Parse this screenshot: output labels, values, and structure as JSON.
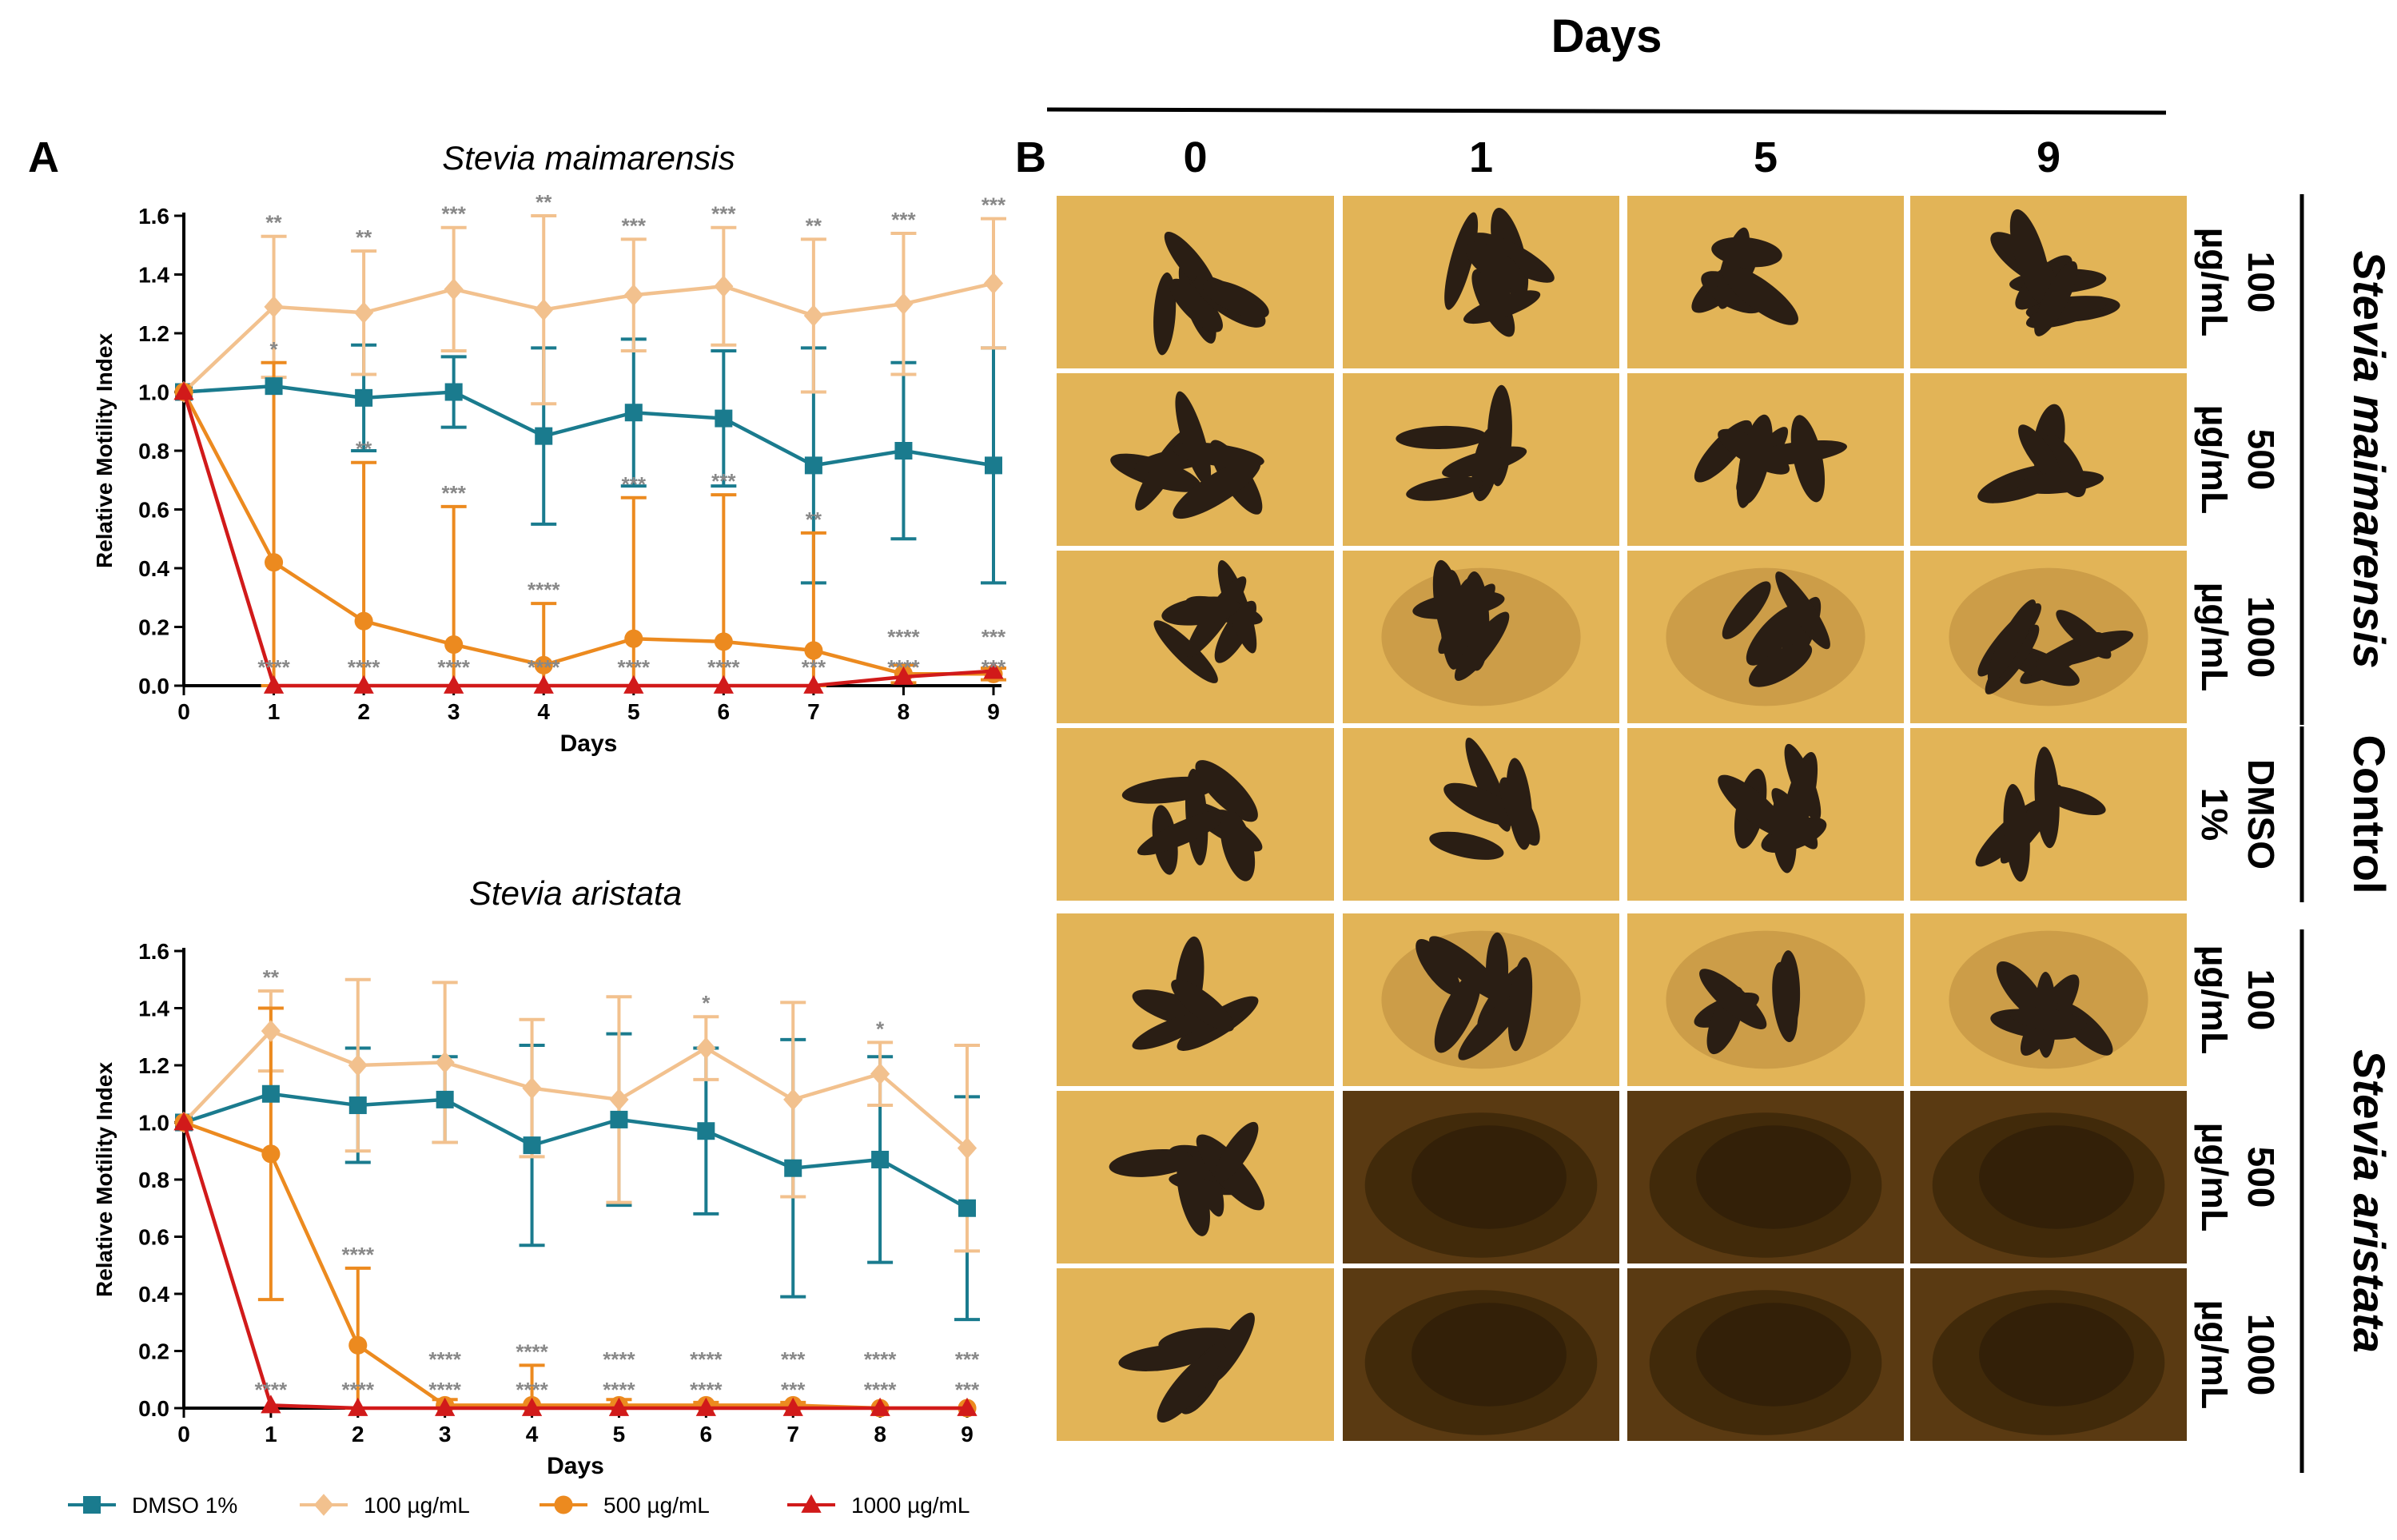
{
  "figure": {
    "panel_a_label": "A",
    "panel_b_label": "B",
    "days_header": "Days",
    "day_columns": [
      "0",
      "1",
      "5",
      "9"
    ],
    "row_groups": [
      {
        "label": "Stevia maimarensis",
        "italic": true
      },
      {
        "label": "Control",
        "italic": false
      },
      {
        "label": "Stevia aristata",
        "italic": true
      }
    ],
    "rows": [
      {
        "dose": "100",
        "unit": "µg/mL",
        "group": 0,
        "tone": "gold",
        "spread": "compact"
      },
      {
        "dose": "500",
        "unit": "µg/mL",
        "group": 0,
        "tone": "gold",
        "spread": "compact"
      },
      {
        "dose": "1000",
        "unit": "µg/mL",
        "group": 0,
        "tone": "gold",
        "spread": "halo"
      },
      {
        "dose": "DMSO",
        "unit": "1%",
        "group": 1,
        "tone": "gold",
        "spread": "compact"
      },
      {
        "dose": "100",
        "unit": "µg/mL",
        "group": 2,
        "tone": "gold",
        "spread": "halo"
      },
      {
        "dose": "500",
        "unit": "µg/mL",
        "group": 2,
        "tone": "dark",
        "spread": "dissolved"
      },
      {
        "dose": "1000",
        "unit": "µg/mL",
        "group": 2,
        "tone": "dark",
        "spread": "dissolved"
      }
    ],
    "colors": {
      "dmso": "#1a7b8e",
      "d100": "#f2c18e",
      "d500": "#ec8a1f",
      "d1000": "#d11a1a",
      "sig": "#888888",
      "photo_gold": "#e2b457",
      "photo_dark": "#5a3a12",
      "blob": "#2a1e14"
    }
  },
  "legend": [
    {
      "label": "DMSO 1%",
      "color": "#1a7b8e",
      "marker": "square"
    },
    {
      "label": "100 µg/mL",
      "color": "#f2c18e",
      "marker": "diamond"
    },
    {
      "label": "500 µg/mL",
      "color": "#ec8a1f",
      "marker": "circle"
    },
    {
      "label": "1000 µg/mL",
      "color": "#d11a1a",
      "marker": "triangle"
    }
  ],
  "chart_data": [
    {
      "type": "line",
      "title": "Stevia maimarensis",
      "xlabel": "Days",
      "ylabel": "Relative Motility Index",
      "x": [
        0,
        1,
        2,
        3,
        4,
        5,
        6,
        7,
        8,
        9
      ],
      "xlim": [
        0,
        9
      ],
      "ylim": [
        0,
        1.6
      ],
      "yticks": [
        "0.0",
        "0.2",
        "0.4",
        "0.6",
        "0.8",
        "1.0",
        "1.2",
        "1.4",
        "1.6"
      ],
      "series": [
        {
          "name": "DMSO 1%",
          "key": "dmso",
          "values": [
            1.0,
            1.02,
            0.98,
            1.0,
            0.85,
            0.93,
            0.91,
            0.75,
            0.8,
            0.75
          ],
          "err": [
            0,
            0.0,
            0.18,
            0.12,
            0.3,
            0.25,
            0.23,
            0.4,
            0.3,
            0.4
          ]
        },
        {
          "name": "100 µg/mL",
          "key": "d100",
          "values": [
            1.0,
            1.29,
            1.27,
            1.35,
            1.28,
            1.33,
            1.36,
            1.26,
            1.3,
            1.37
          ],
          "err": [
            0,
            0.24,
            0.21,
            0.21,
            0.32,
            0.19,
            0.2,
            0.26,
            0.24,
            0.22
          ]
        },
        {
          "name": "500 µg/mL",
          "key": "d500",
          "values": [
            1.0,
            0.42,
            0.22,
            0.14,
            0.07,
            0.16,
            0.15,
            0.12,
            0.04,
            0.04
          ],
          "err": [
            0,
            0.68,
            0.54,
            0.47,
            0.21,
            0.48,
            0.5,
            0.4,
            0.03,
            0.02
          ]
        },
        {
          "name": "1000 µg/mL",
          "key": "d1000",
          "values": [
            1.0,
            0.0,
            0.0,
            0.0,
            0.0,
            0.0,
            0.0,
            0.0,
            0.03,
            0.05
          ],
          "err": [
            0,
            0,
            0,
            0,
            0,
            0,
            0,
            0,
            0,
            0
          ]
        }
      ],
      "annotations": [
        {
          "x": 1,
          "series": "d100",
          "text": "**"
        },
        {
          "x": 2,
          "series": "d100",
          "text": "**"
        },
        {
          "x": 3,
          "series": "d100",
          "text": "***"
        },
        {
          "x": 4,
          "series": "d100",
          "text": "**"
        },
        {
          "x": 5,
          "series": "d100",
          "text": "***"
        },
        {
          "x": 6,
          "series": "d100",
          "text": "***"
        },
        {
          "x": 7,
          "series": "d100",
          "text": "**"
        },
        {
          "x": 8,
          "series": "d100",
          "text": "***"
        },
        {
          "x": 9,
          "series": "d100",
          "text": "***"
        },
        {
          "x": 1,
          "series": "d500",
          "text": "*"
        },
        {
          "x": 2,
          "series": "d500",
          "text": "**"
        },
        {
          "x": 3,
          "series": "d500",
          "text": "***"
        },
        {
          "x": 4,
          "series": "d500",
          "text": "****"
        },
        {
          "x": 5,
          "series": "d500",
          "text": "***"
        },
        {
          "x": 6,
          "series": "d500",
          "text": "***"
        },
        {
          "x": 7,
          "series": "d500",
          "text": "**"
        },
        {
          "x": 8,
          "series": "d500",
          "text": "****"
        },
        {
          "x": 9,
          "series": "d500",
          "text": "***"
        },
        {
          "x": 1,
          "series": "d1000",
          "text": "****"
        },
        {
          "x": 2,
          "series": "d1000",
          "text": "****"
        },
        {
          "x": 3,
          "series": "d1000",
          "text": "****"
        },
        {
          "x": 4,
          "series": "d1000",
          "text": "****"
        },
        {
          "x": 5,
          "series": "d1000",
          "text": "****"
        },
        {
          "x": 6,
          "series": "d1000",
          "text": "****"
        },
        {
          "x": 7,
          "series": "d1000",
          "text": "***"
        },
        {
          "x": 8,
          "series": "d1000",
          "text": "****"
        },
        {
          "x": 9,
          "series": "d1000",
          "text": "***"
        }
      ]
    },
    {
      "type": "line",
      "title": "Stevia aristata",
      "xlabel": "Days",
      "ylabel": "Relative Motility Index",
      "x": [
        0,
        1,
        2,
        3,
        4,
        5,
        6,
        7,
        8,
        9
      ],
      "xlim": [
        0,
        9
      ],
      "ylim": [
        0,
        1.6
      ],
      "yticks": [
        "0.0",
        "0.2",
        "0.4",
        "0.6",
        "0.8",
        "1.0",
        "1.2",
        "1.4",
        "1.6"
      ],
      "series": [
        {
          "name": "DMSO 1%",
          "key": "dmso",
          "values": [
            1.0,
            1.1,
            1.06,
            1.08,
            0.92,
            1.01,
            0.97,
            0.84,
            0.87,
            0.7
          ],
          "err": [
            0,
            0.0,
            0.2,
            0.15,
            0.35,
            0.3,
            0.29,
            0.45,
            0.36,
            0.39
          ]
        },
        {
          "name": "100 µg/mL",
          "key": "d100",
          "values": [
            1.0,
            1.32,
            1.2,
            1.21,
            1.12,
            1.08,
            1.26,
            1.08,
            1.17,
            0.91
          ],
          "err": [
            0,
            0.14,
            0.3,
            0.28,
            0.24,
            0.36,
            0.11,
            0.34,
            0.11,
            0.36
          ]
        },
        {
          "name": "500 µg/mL",
          "key": "d500",
          "values": [
            1.0,
            0.89,
            0.22,
            0.01,
            0.01,
            0.01,
            0.01,
            0.01,
            0.0,
            0.0
          ],
          "err": [
            0,
            0.51,
            0.27,
            0.02,
            0.14,
            0.02,
            0.01,
            0.01,
            0.0,
            0.0
          ]
        },
        {
          "name": "1000 µg/mL",
          "key": "d1000",
          "values": [
            1.0,
            0.01,
            0.0,
            0.0,
            0.0,
            0.0,
            0.0,
            0.0,
            0.0,
            0.0
          ],
          "err": [
            0,
            0,
            0,
            0,
            0,
            0,
            0,
            0,
            0,
            0
          ]
        }
      ],
      "annotations": [
        {
          "x": 1,
          "series": "d100",
          "text": "**"
        },
        {
          "x": 6,
          "series": "d100",
          "text": "*"
        },
        {
          "x": 8,
          "series": "d100",
          "text": "*"
        },
        {
          "x": 2,
          "series": "d500",
          "text": "****"
        },
        {
          "x": 3,
          "series": "d500",
          "text": "****"
        },
        {
          "x": 4,
          "series": "d500",
          "text": "****"
        },
        {
          "x": 5,
          "series": "d500",
          "text": "****"
        },
        {
          "x": 6,
          "series": "d500",
          "text": "****"
        },
        {
          "x": 7,
          "series": "d500",
          "text": "***"
        },
        {
          "x": 8,
          "series": "d500",
          "text": "****"
        },
        {
          "x": 9,
          "series": "d500",
          "text": "***"
        },
        {
          "x": 1,
          "series": "d1000",
          "text": "****"
        },
        {
          "x": 2,
          "series": "d1000",
          "text": "****"
        },
        {
          "x": 3,
          "series": "d1000",
          "text": "****"
        },
        {
          "x": 4,
          "series": "d1000",
          "text": "****"
        },
        {
          "x": 5,
          "series": "d1000",
          "text": "****"
        },
        {
          "x": 6,
          "series": "d1000",
          "text": "****"
        },
        {
          "x": 7,
          "series": "d1000",
          "text": "***"
        },
        {
          "x": 8,
          "series": "d1000",
          "text": "****"
        },
        {
          "x": 9,
          "series": "d1000",
          "text": "***"
        }
      ]
    }
  ]
}
